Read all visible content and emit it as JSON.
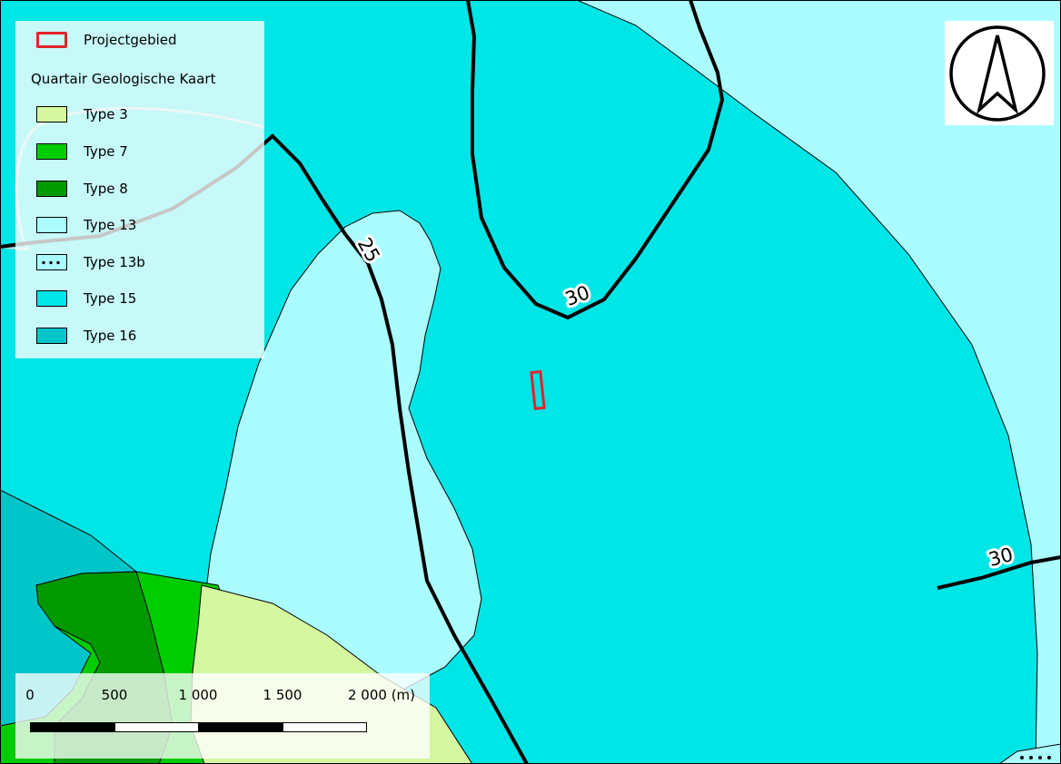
{
  "legend": {
    "project_label": "Projectgebied",
    "title": "Quartair Geologische Kaart",
    "project_color": "#e3242b",
    "items": [
      {
        "label": "Type 3",
        "color": "#d4f7a0",
        "pattern": "solid"
      },
      {
        "label": "Type 7",
        "color": "#00cc00",
        "pattern": "solid"
      },
      {
        "label": "Type 8",
        "color": "#009900",
        "pattern": "solid"
      },
      {
        "label": "Type 13",
        "color": "#aafcff",
        "pattern": "solid"
      },
      {
        "label": "Type 13b",
        "color": "#aafcff",
        "pattern": "dotted"
      },
      {
        "label": "Type 15",
        "color": "#00e5e5",
        "pattern": "solid"
      },
      {
        "label": "Type 16",
        "color": "#00c5c9",
        "pattern": "solid"
      }
    ]
  },
  "contours": {
    "labels": [
      "25",
      "30",
      "30"
    ]
  },
  "north_arrow": {
    "icon": "north-arrow-icon"
  },
  "scale_bar": {
    "labels": [
      "0",
      "500",
      "1 000",
      "1 500",
      "2 000 (m)"
    ]
  }
}
